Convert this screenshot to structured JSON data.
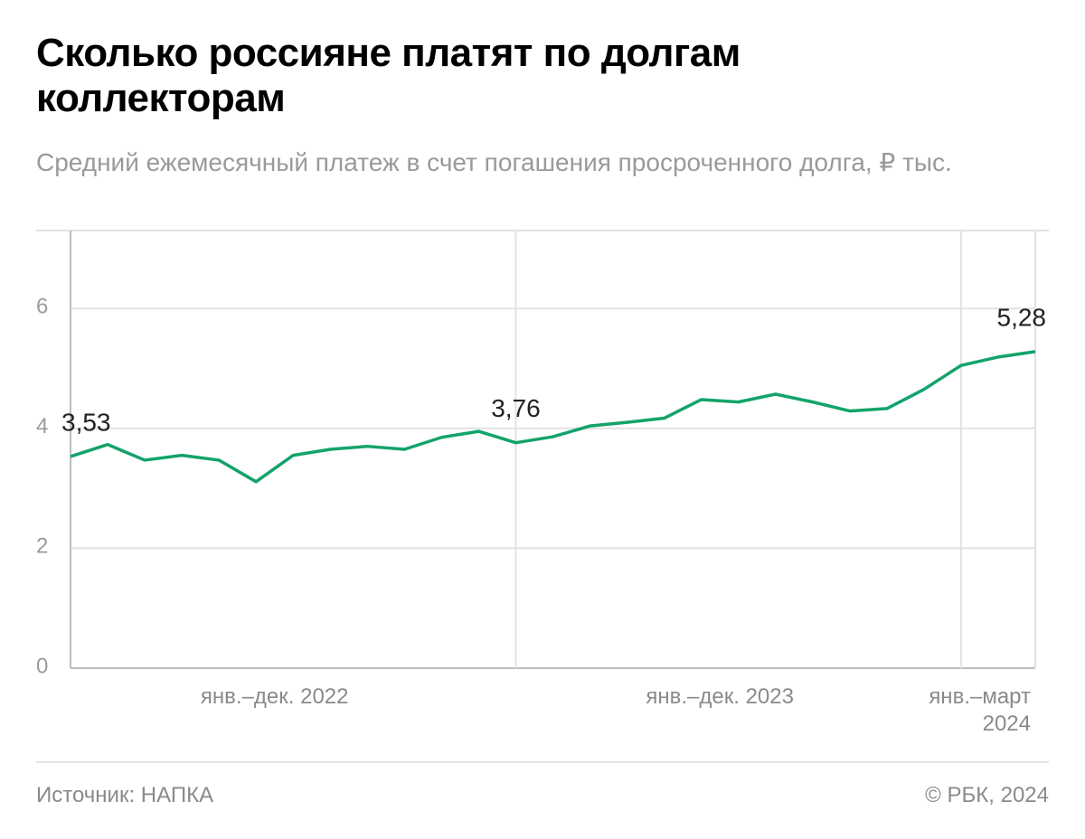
{
  "title": "Сколько россияне платят по долгам коллекторам",
  "subtitle": "Средний ежемесячный платеж в счет погашения просроченного долга, ₽ тыс.",
  "source": "Источник: НАПКА",
  "copyright": "© РБК, 2024",
  "chart_data": {
    "type": "line",
    "categories": [
      "янв.–дек. 2022",
      null,
      null,
      null,
      null,
      null,
      null,
      null,
      null,
      null,
      null,
      null,
      "янв.–дек. 2023",
      null,
      null,
      null,
      null,
      null,
      null,
      null,
      null,
      null,
      null,
      null,
      "янв.–март 2024",
      null,
      null
    ],
    "values": [
      3.53,
      3.73,
      3.47,
      3.55,
      3.47,
      3.11,
      3.55,
      3.65,
      3.7,
      3.65,
      3.85,
      3.95,
      3.76,
      3.86,
      4.04,
      4.1,
      4.17,
      4.48,
      4.44,
      4.57,
      4.44,
      4.29,
      4.33,
      4.65,
      5.05,
      5.19,
      5.28
    ],
    "value_labels": [
      "3,53",
      null,
      null,
      null,
      null,
      null,
      null,
      null,
      null,
      null,
      null,
      null,
      "3,76",
      null,
      null,
      null,
      null,
      null,
      null,
      null,
      null,
      null,
      null,
      null,
      null,
      null,
      "5,28"
    ],
    "color": "#13a36a",
    "ylim": [
      0,
      7.3
    ],
    "yticks": [
      0,
      2,
      4,
      6
    ],
    "grid": true
  }
}
